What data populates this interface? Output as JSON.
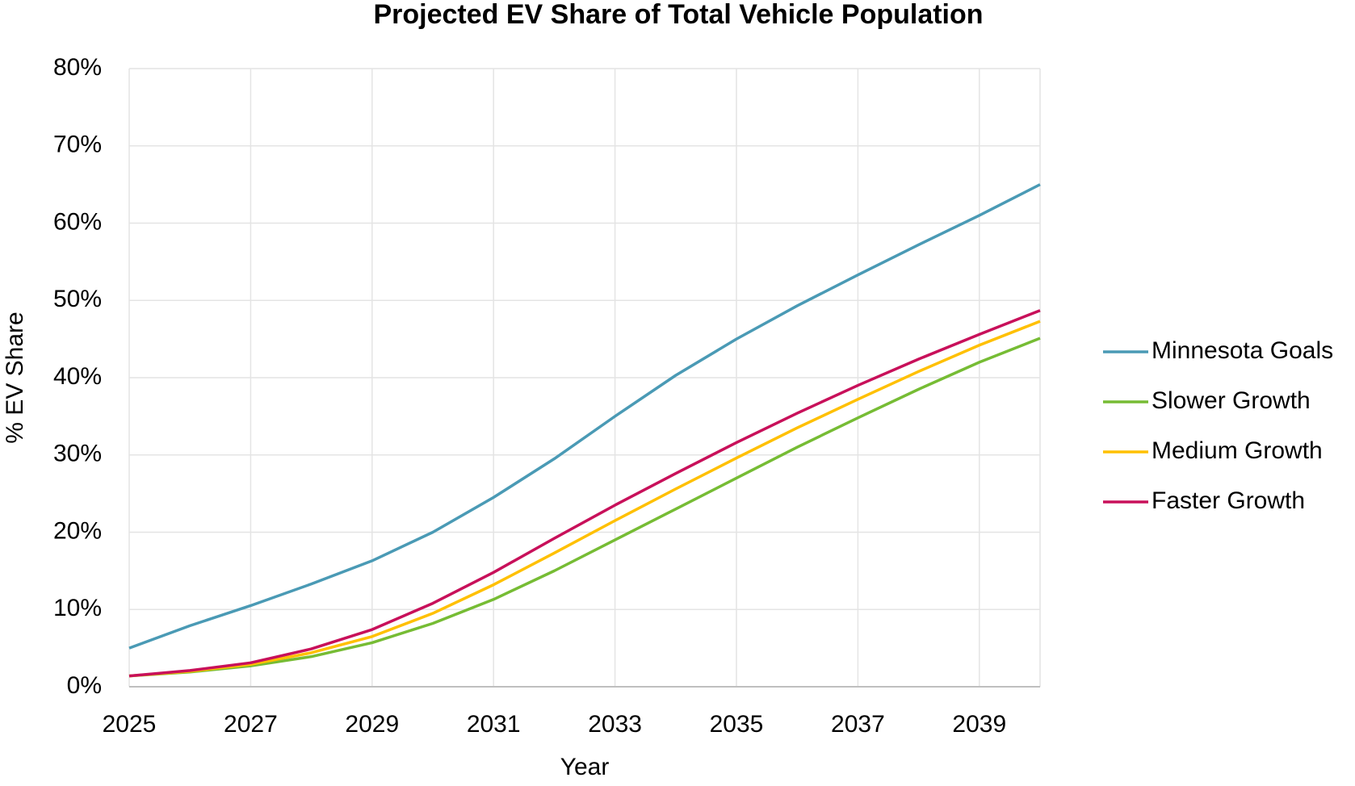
{
  "chart_data": {
    "type": "line",
    "title": "Projected EV Share of Total Vehicle Population",
    "x_label": "Year",
    "y_label": "% EV Share",
    "x": [
      2025,
      2026,
      2027,
      2028,
      2029,
      2030,
      2031,
      2032,
      2033,
      2034,
      2035,
      2036,
      2037,
      2038,
      2039,
      2040
    ],
    "series": [
      {
        "name": "Minnesota Goals",
        "color": "#4a9ab5",
        "values": [
          5,
          7.9,
          10.5,
          13.3,
          16.3,
          20,
          24.5,
          29.5,
          35,
          40.3,
          45,
          49.3,
          53.3,
          57.2,
          61,
          65
        ]
      },
      {
        "name": "Slower Growth",
        "color": "#76bc34",
        "values": [
          1.4,
          1.9,
          2.7,
          3.9,
          5.7,
          8.2,
          11.3,
          15,
          19,
          23,
          27,
          31,
          34.8,
          38.5,
          42,
          45.1
        ]
      },
      {
        "name": "Medium Growth",
        "color": "#ffc000",
        "values": [
          1.4,
          2,
          2.9,
          4.4,
          6.5,
          9.5,
          13.2,
          17.3,
          21.5,
          25.6,
          29.6,
          33.5,
          37.2,
          40.8,
          44.2,
          47.3
        ]
      },
      {
        "name": "Faster Growth",
        "color": "#c8105a",
        "values": [
          1.4,
          2.1,
          3.1,
          4.9,
          7.4,
          10.8,
          14.8,
          19.2,
          23.5,
          27.6,
          31.6,
          35.4,
          39,
          42.4,
          45.6,
          48.7
        ]
      }
    ],
    "xlim": [
      2025,
      2040
    ],
    "xticks": [
      2025,
      2027,
      2029,
      2031,
      2033,
      2035,
      2037,
      2039
    ],
    "ylim": [
      0,
      80
    ],
    "yticks": [
      {
        "value": 0,
        "label": "0%"
      },
      {
        "value": 10,
        "label": "10%"
      },
      {
        "value": 20,
        "label": "20%"
      },
      {
        "value": 30,
        "label": "30%"
      },
      {
        "value": 40,
        "label": "40%"
      },
      {
        "value": 50,
        "label": "50%"
      },
      {
        "value": 60,
        "label": "60%"
      },
      {
        "value": 70,
        "label": "70%"
      },
      {
        "value": 80,
        "label": "80%"
      }
    ],
    "grid": true,
    "legend": "right"
  }
}
